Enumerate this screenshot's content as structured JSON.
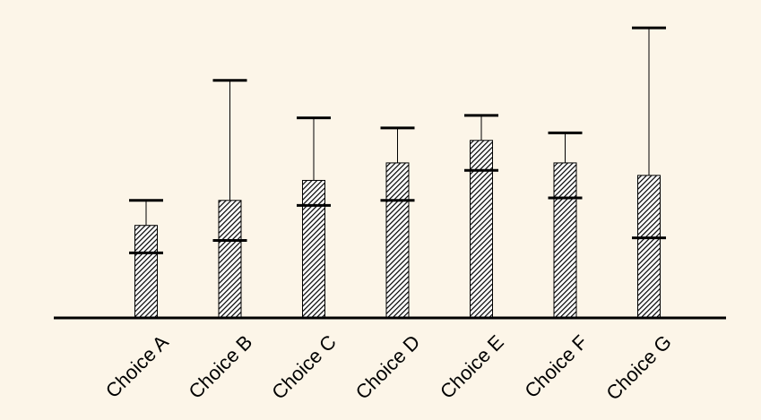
{
  "chart_data": {
    "type": "bar",
    "categories": [
      "Choice A",
      "Choice B",
      "Choice C",
      "Choice D",
      "Choice E",
      "Choice F",
      "Choice G"
    ],
    "values": [
      3.7,
      4.7,
      5.5,
      6.2,
      7.1,
      6.2,
      5.7
    ],
    "error_high": [
      1.0,
      4.8,
      2.5,
      1.4,
      1.0,
      1.2,
      5.9
    ],
    "error_low": [
      1.1,
      1.6,
      1.0,
      1.5,
      1.2,
      1.4,
      2.5
    ],
    "color": "#000000",
    "ylim": [
      0,
      12
    ]
  }
}
